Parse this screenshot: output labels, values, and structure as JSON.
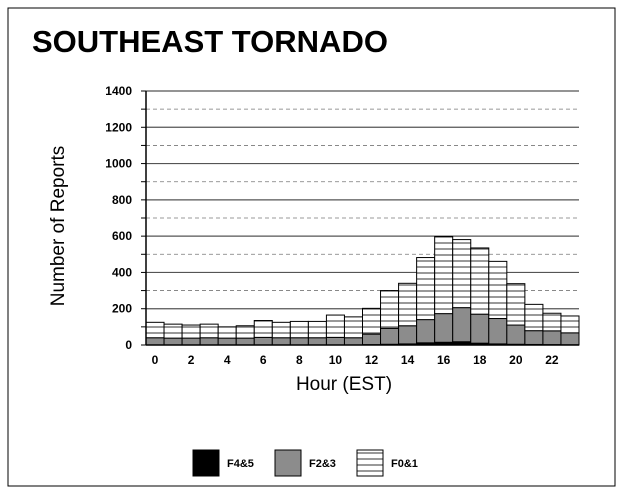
{
  "chart_data": {
    "type": "bar",
    "stacked": true,
    "title": "SOUTHEAST TORNADO",
    "xlabel": "Hour (EST)",
    "ylabel": "Number of Reports",
    "ylim": [
      0,
      1400
    ],
    "yticks": [
      "0",
      "200",
      "400",
      "600",
      "800",
      "1000",
      "1200",
      "1400"
    ],
    "xtick_labels": [
      "0",
      "2",
      "4",
      "6",
      "8",
      "10",
      "12",
      "14",
      "16",
      "18",
      "20",
      "22"
    ],
    "categories": [
      "0",
      "1",
      "2",
      "3",
      "4",
      "5",
      "6",
      "7",
      "8",
      "9",
      "10",
      "11",
      "12",
      "13",
      "14",
      "15",
      "16",
      "17",
      "18",
      "19",
      "20",
      "21",
      "22",
      "23"
    ],
    "grid": "horizontal",
    "legend_position": "bottom",
    "series": [
      {
        "name": "F4&5",
        "color": "#000000",
        "values": [
          0,
          0,
          0,
          0,
          0,
          0,
          0,
          0,
          0,
          0,
          0,
          0,
          2,
          4,
          6,
          12,
          15,
          18,
          10,
          6,
          4,
          3,
          2,
          1
        ]
      },
      {
        "name": "F2&3",
        "color": "#8c8c8c",
        "values": [
          40,
          38,
          38,
          40,
          38,
          38,
          42,
          40,
          40,
          40,
          42,
          40,
          58,
          88,
          100,
          128,
          158,
          188,
          160,
          140,
          106,
          76,
          76,
          66
        ]
      },
      {
        "name": "F0&1",
        "color": "#ffffff",
        "values": [
          85,
          77,
          72,
          75,
          62,
          68,
          93,
          85,
          90,
          90,
          123,
          115,
          142,
          208,
          234,
          342,
          425,
          375,
          365,
          315,
          228,
          145,
          97,
          93
        ]
      }
    ]
  }
}
